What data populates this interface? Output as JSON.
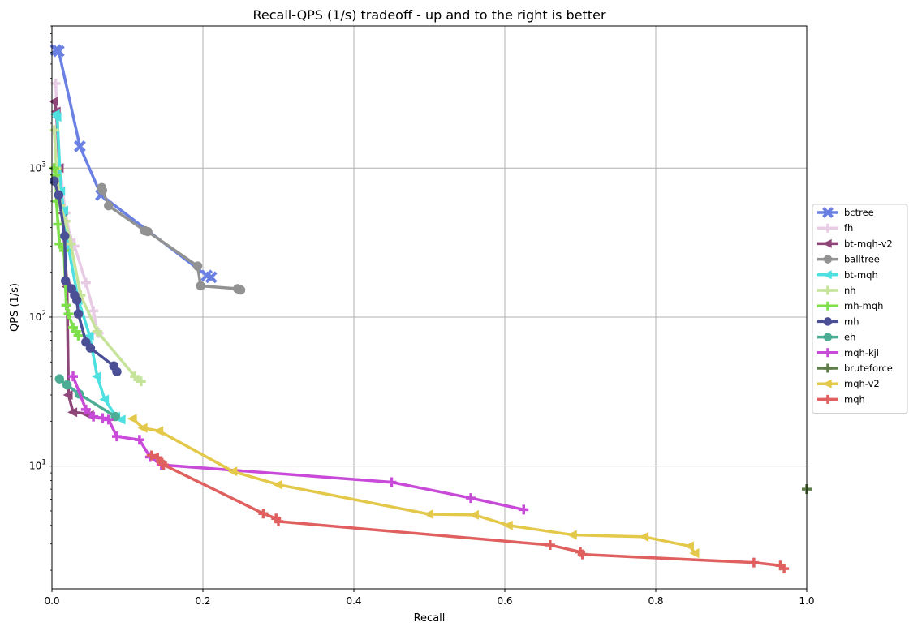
{
  "chart_data": {
    "type": "line",
    "title": "Recall-QPS (1/s) tradeoff - up and to the right is better",
    "xlabel": "Recall",
    "ylabel": "QPS (1/s)",
    "xlim": [
      0,
      1
    ],
    "ylim": [
      1.5,
      9000
    ],
    "yscale": "log",
    "grid": true,
    "legend_position": "right, outside plot",
    "x_ticks": [
      {
        "value": 0,
        "label": "0.0"
      },
      {
        "value": 0.2,
        "label": "0.2"
      },
      {
        "value": 0.4,
        "label": "0.4"
      },
      {
        "value": 0.6,
        "label": "0.6"
      },
      {
        "value": 0.8,
        "label": "0.8"
      },
      {
        "value": 1.0,
        "label": "1.0"
      }
    ],
    "y_ticks": [
      {
        "value": 10,
        "base": "10",
        "exp": "1"
      },
      {
        "value": 100,
        "base": "10",
        "exp": "2"
      },
      {
        "value": 1000,
        "base": "10",
        "exp": "3"
      }
    ],
    "series": [
      {
        "name": "bctree",
        "color": "#6b80e3",
        "marker": "x",
        "points": [
          [
            0.005,
            6200
          ],
          [
            0.009,
            6100
          ],
          [
            0.037,
            1400
          ],
          [
            0.065,
            660
          ],
          [
            0.205,
            190
          ],
          [
            0.211,
            185
          ]
        ]
      },
      {
        "name": "fh",
        "color": "#e8cce6",
        "marker": "plus",
        "points": [
          [
            0.005,
            3700
          ],
          [
            0.01,
            1050
          ],
          [
            0.018,
            500
          ],
          [
            0.025,
            330
          ],
          [
            0.03,
            300
          ],
          [
            0.045,
            170
          ],
          [
            0.055,
            110
          ],
          [
            0.06,
            80
          ],
          [
            0.062,
            78
          ]
        ]
      },
      {
        "name": "bt-mqh-v2",
        "color": "#8e4678",
        "marker": "triangle-left",
        "points": [
          [
            0.003,
            2800
          ],
          [
            0.006,
            2400
          ],
          [
            0.01,
            1000
          ],
          [
            0.014,
            500
          ],
          [
            0.02,
            160
          ],
          [
            0.022,
            30
          ],
          [
            0.028,
            23
          ],
          [
            0.045,
            22.5
          ],
          [
            0.05,
            22
          ]
        ]
      },
      {
        "name": "balltree",
        "color": "#929292",
        "marker": "circle",
        "points": [
          [
            0.066,
            740
          ],
          [
            0.067,
            710
          ],
          [
            0.075,
            560
          ],
          [
            0.123,
            380
          ],
          [
            0.127,
            375
          ],
          [
            0.193,
            220
          ],
          [
            0.197,
            162
          ],
          [
            0.246,
            155
          ],
          [
            0.25,
            152
          ]
        ]
      },
      {
        "name": "bt-mqh",
        "color": "#4ee0e0",
        "marker": "triangle-left",
        "points": [
          [
            0.005,
            2300
          ],
          [
            0.007,
            2200
          ],
          [
            0.012,
            700
          ],
          [
            0.016,
            520
          ],
          [
            0.022,
            290
          ],
          [
            0.035,
            130
          ],
          [
            0.05,
            75
          ],
          [
            0.06,
            40
          ],
          [
            0.07,
            28
          ],
          [
            0.085,
            21.5
          ],
          [
            0.092,
            20.5
          ]
        ]
      },
      {
        "name": "nh",
        "color": "#c6e39a",
        "marker": "plus",
        "points": [
          [
            0.003,
            1800
          ],
          [
            0.006,
            1000
          ],
          [
            0.011,
            560
          ],
          [
            0.018,
            440
          ],
          [
            0.025,
            310
          ],
          [
            0.038,
            140
          ],
          [
            0.06,
            80
          ],
          [
            0.11,
            40
          ],
          [
            0.118,
            37
          ]
        ]
      },
      {
        "name": "mh-mqh",
        "color": "#7de04a",
        "marker": "plus",
        "points": [
          [
            0.003,
            1000
          ],
          [
            0.005,
            900
          ],
          [
            0.006,
            600
          ],
          [
            0.008,
            420
          ],
          [
            0.01,
            310
          ],
          [
            0.016,
            280
          ],
          [
            0.019,
            120
          ],
          [
            0.022,
            105
          ],
          [
            0.028,
            85
          ],
          [
            0.032,
            80
          ],
          [
            0.035,
            75
          ]
        ]
      },
      {
        "name": "mh",
        "color": "#4a4f96",
        "marker": "circle",
        "points": [
          [
            0.003,
            820
          ],
          [
            0.009,
            660
          ],
          [
            0.017,
            350
          ],
          [
            0.018,
            175
          ],
          [
            0.026,
            155
          ],
          [
            0.03,
            140
          ],
          [
            0.033,
            130
          ],
          [
            0.035,
            105
          ],
          [
            0.045,
            68
          ],
          [
            0.051,
            62
          ],
          [
            0.082,
            47
          ],
          [
            0.086,
            43
          ]
        ]
      },
      {
        "name": "eh",
        "color": "#4aad94",
        "marker": "circle",
        "points": [
          [
            0.01,
            38.5
          ],
          [
            0.02,
            35
          ],
          [
            0.036,
            30.5
          ],
          [
            0.084,
            21.5
          ]
        ]
      },
      {
        "name": "mqh-kjl",
        "color": "#c84ad8",
        "marker": "plus",
        "points": [
          [
            0.028,
            40
          ],
          [
            0.045,
            24
          ],
          [
            0.055,
            21.5
          ],
          [
            0.067,
            21
          ],
          [
            0.075,
            20.5
          ],
          [
            0.086,
            15.8
          ],
          [
            0.116,
            15
          ],
          [
            0.13,
            11.5
          ],
          [
            0.145,
            10.2
          ],
          [
            0.45,
            7.8
          ],
          [
            0.555,
            6.1
          ],
          [
            0.625,
            5.1
          ]
        ]
      },
      {
        "name": "bruteforce",
        "color": "#5f7d4a",
        "marker": "plus",
        "points": [
          [
            1.0,
            7.0
          ]
        ]
      },
      {
        "name": "mqh-v2",
        "color": "#e4c84a",
        "marker": "triangle-left",
        "points": [
          [
            0.107,
            20.8
          ],
          [
            0.121,
            18
          ],
          [
            0.142,
            17.2
          ],
          [
            0.24,
            9.2
          ],
          [
            0.3,
            7.5
          ],
          [
            0.5,
            4.75
          ],
          [
            0.56,
            4.7
          ],
          [
            0.605,
            4.0
          ],
          [
            0.69,
            3.45
          ],
          [
            0.785,
            3.35
          ],
          [
            0.845,
            2.9
          ],
          [
            0.852,
            2.6
          ]
        ]
      },
      {
        "name": "mqh",
        "color": "#e06060",
        "marker": "plus",
        "points": [
          [
            0.132,
            11.8
          ],
          [
            0.14,
            11.4
          ],
          [
            0.146,
            10.5
          ],
          [
            0.148,
            10.2
          ],
          [
            0.28,
            4.8
          ],
          [
            0.297,
            4.45
          ],
          [
            0.3,
            4.25
          ],
          [
            0.66,
            2.95
          ],
          [
            0.7,
            2.65
          ],
          [
            0.703,
            2.55
          ],
          [
            0.93,
            2.25
          ],
          [
            0.965,
            2.15
          ],
          [
            0.97,
            2.05
          ]
        ]
      }
    ]
  }
}
